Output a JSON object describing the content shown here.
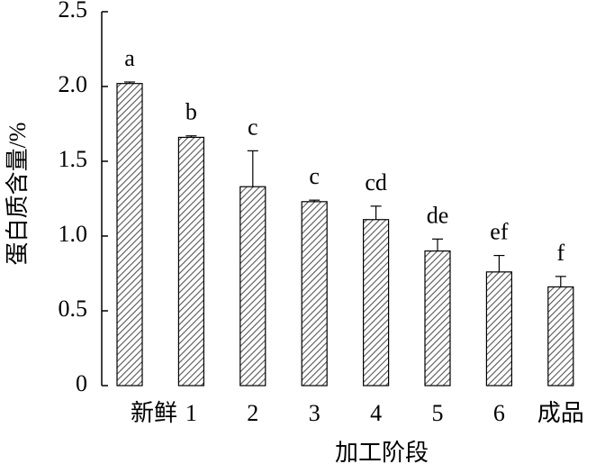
{
  "chart_data": {
    "type": "bar",
    "x_label": "加工阶段",
    "y_label": "蛋白质含量/%",
    "categories": [
      "新鲜",
      "1",
      "2",
      "3",
      "4",
      "5",
      "6",
      "成品"
    ],
    "values": [
      2.02,
      1.66,
      1.33,
      1.23,
      1.11,
      0.9,
      0.76,
      0.66
    ],
    "errors": [
      0.01,
      0.01,
      0.24,
      0.01,
      0.09,
      0.08,
      0.11,
      0.07
    ],
    "letters": [
      "a",
      "b",
      "c",
      "c",
      "cd",
      "de",
      "ef",
      "f"
    ],
    "color": "#555555",
    "ylim": [
      0,
      2.5
    ],
    "yticks": [
      0,
      0.5,
      {
        "value": 1,
        "label": "1.0"
      },
      1.5,
      {
        "value": 2,
        "label": "2.0"
      },
      2.5
    ]
  }
}
